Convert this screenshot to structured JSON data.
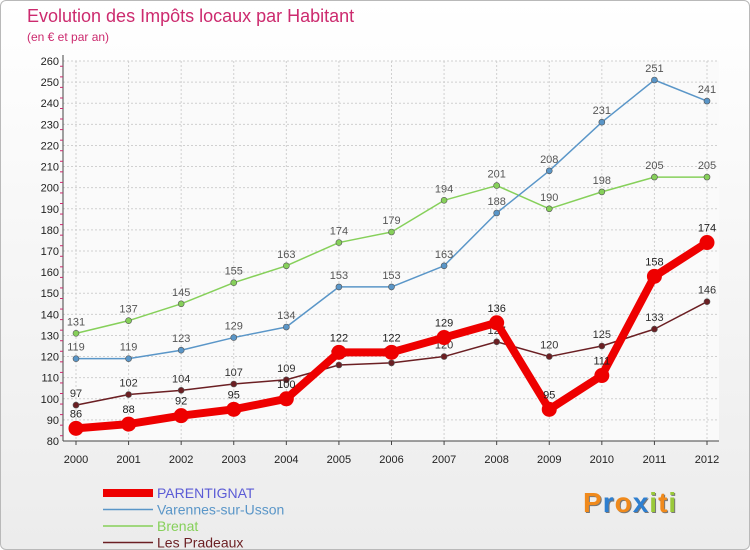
{
  "chart_data": {
    "type": "line",
    "title": "Evolution des Impôts locaux par Habitant",
    "subtitle": "(en € et par an)",
    "categories": [
      "2000",
      "2001",
      "2002",
      "2003",
      "2004",
      "2005",
      "2006",
      "2007",
      "2008",
      "2009",
      "2010",
      "2011",
      "2012"
    ],
    "ylim": [
      80,
      260
    ],
    "yticks": [
      80,
      90,
      100,
      110,
      120,
      130,
      140,
      150,
      160,
      170,
      180,
      190,
      200,
      210,
      220,
      230,
      240,
      250,
      260
    ],
    "grid": true,
    "legend_position": "bottom-left",
    "series": [
      {
        "name": "Les Pradeaux",
        "color": "#6b1f23",
        "values": [
          97,
          102,
          104,
          107,
          109,
          116,
          117,
          120,
          127,
          120,
          125,
          133,
          146
        ]
      },
      {
        "name": "Brenat",
        "color": "#86d05a",
        "values": [
          131,
          137,
          145,
          155,
          163,
          174,
          179,
          194,
          201,
          190,
          198,
          205,
          205
        ]
      },
      {
        "name": "Varennes-sur-Usson",
        "color": "#5a96c8",
        "values": [
          119,
          119,
          123,
          129,
          134,
          153,
          153,
          163,
          188,
          208,
          231,
          251,
          241
        ]
      },
      {
        "name": "PARENTIGNAT",
        "color": "#ee0000",
        "values": [
          86,
          88,
          92,
          95,
          100,
          122,
          122,
          129,
          136,
          95,
          111,
          158,
          174
        ]
      }
    ],
    "legend_order": [
      "PARENTIGNAT",
      "Varennes-sur-Usson",
      "Brenat",
      "Les Pradeaux"
    ]
  },
  "legend_label_colors": {
    "PARENTIGNAT": "#5b5bd6",
    "Varennes-sur-Usson": "#5a96c8",
    "Brenat": "#86d05a",
    "Les Pradeaux": "#6b1f23"
  },
  "logo": {
    "letters": [
      "P",
      "r",
      "o",
      "x",
      "i",
      "t",
      "i"
    ],
    "colors": [
      "#f08a1c",
      "#2e7fd0",
      "#f08a1c",
      "#2e7fd0",
      "#9ac93a",
      "#f08a1c",
      "#9ac93a"
    ]
  }
}
